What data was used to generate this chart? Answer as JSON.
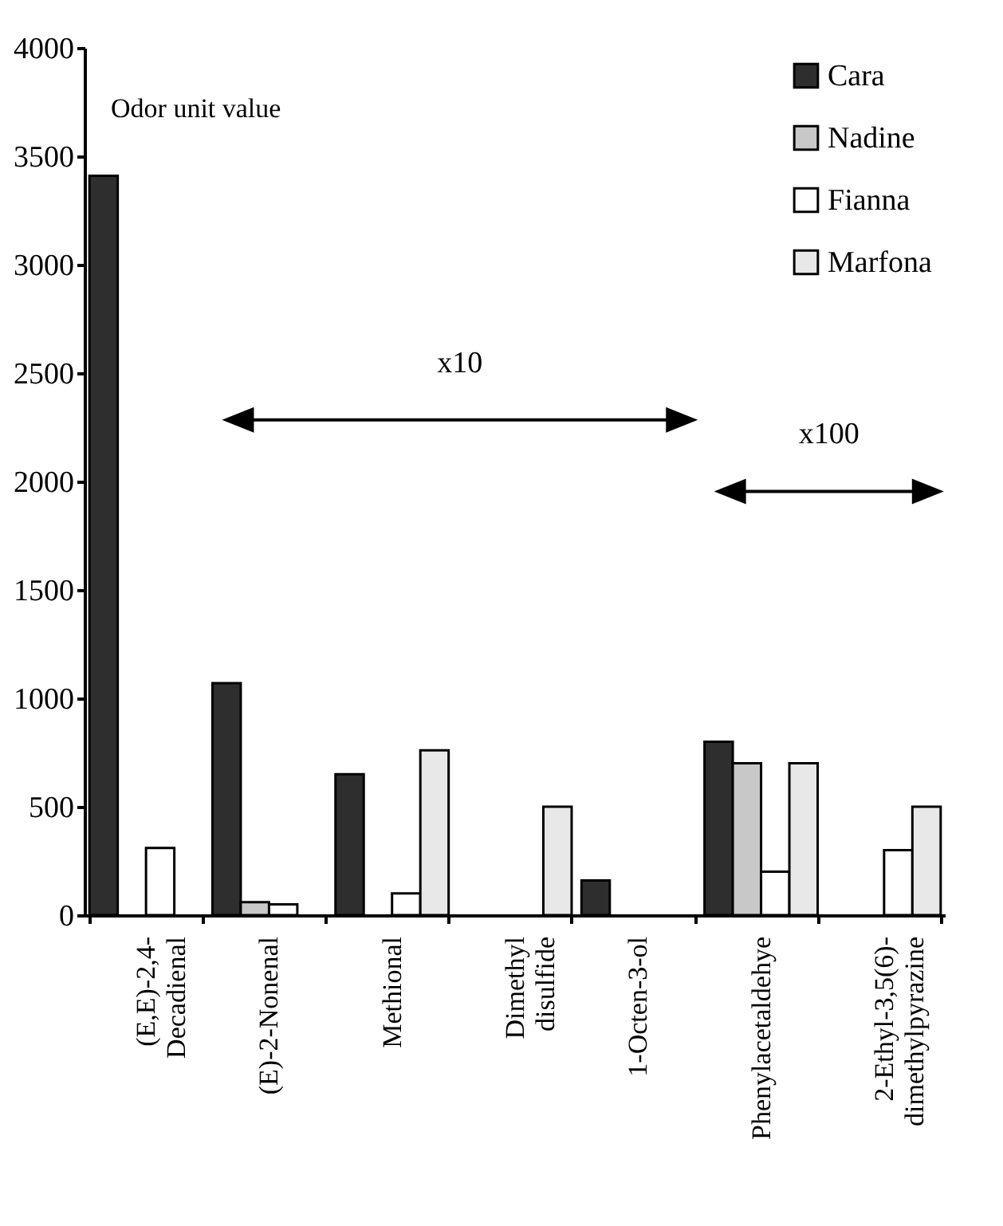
{
  "chart_data": {
    "type": "bar",
    "ylabel": "Odor unit value",
    "categories": [
      "(E,E)-2,4-\nDecadienal",
      "(E)-2-Nonenal",
      "Methional",
      "Dimethyl\ndisulfide",
      "1-Octen-3-ol",
      "Phenylacetaldehye",
      "2-Ethyl-3,5(6)-\ndimethylpyrazine"
    ],
    "series": [
      {
        "name": "Cara",
        "color": "#2e2e2e",
        "values": [
          3410,
          1070,
          650,
          null,
          160,
          800,
          null
        ]
      },
      {
        "name": "Nadine",
        "color": "#c8c8c8",
        "values": [
          null,
          60,
          null,
          null,
          null,
          700,
          null
        ]
      },
      {
        "name": "Fianna",
        "color": "#ffffff",
        "values": [
          310,
          50,
          100,
          null,
          null,
          200,
          300
        ]
      },
      {
        "name": "Marfona",
        "color": "#e8e8e8",
        "values": [
          null,
          null,
          760,
          500,
          null,
          700,
          500
        ]
      }
    ],
    "ylim": [
      0,
      4000
    ],
    "yticks": [
      0,
      500,
      1000,
      1500,
      2000,
      2500,
      3000,
      3500,
      4000
    ],
    "annotations": [
      "x10",
      "x100"
    ],
    "grid": false,
    "legend": "top right"
  }
}
